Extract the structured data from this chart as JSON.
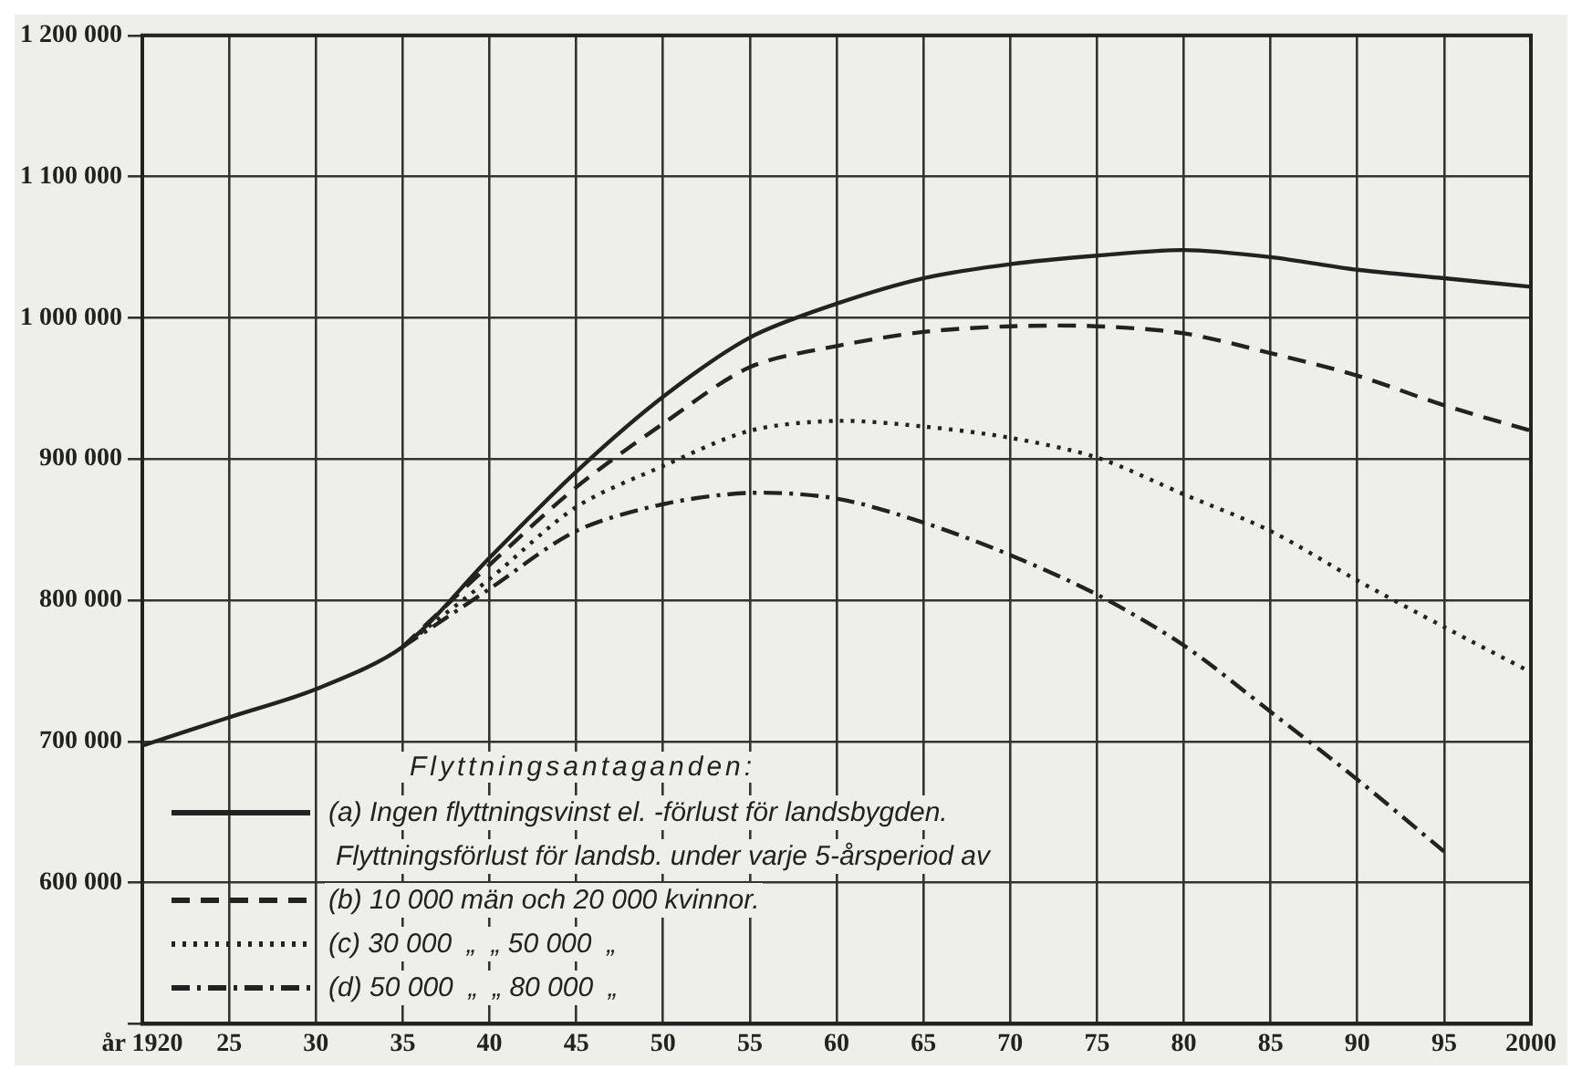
{
  "chart_data": {
    "type": "line",
    "legend_title": "Flyttningsantaganden:",
    "annotations": [
      "Flyttningsförlust för landsb. under varje 5-årsperiod av"
    ],
    "x": [
      1920,
      1925,
      1930,
      1935,
      1940,
      1945,
      1950,
      1955,
      1960,
      1965,
      1970,
      1975,
      1980,
      1985,
      1990,
      1995,
      2000
    ],
    "series": [
      {
        "name": "(a) Ingen flyttningsvinst el. -förlust för landsbygden.",
        "color": "#222222",
        "line_style": "solid",
        "values": [
          697000,
          717000,
          737000,
          767000,
          830000,
          891000,
          944000,
          986000,
          1010000,
          1028000,
          1038000,
          1044000,
          1048000,
          1043000,
          1034000,
          1028000,
          1022000
        ]
      },
      {
        "name": "(b) 10 000 män och 20 000 kvinnor.",
        "color": "#222222",
        "line_style": "dashed",
        "values": [
          null,
          null,
          null,
          767000,
          825000,
          880000,
          925000,
          965000,
          980000,
          990000,
          994000,
          994000,
          989000,
          975000,
          959000,
          938000,
          920000
        ]
      },
      {
        "name": "(c) 30 000  „  „ 50 000  „",
        "color": "#222222",
        "line_style": "dotted",
        "values": [
          null,
          null,
          null,
          767000,
          815000,
          866000,
          895000,
          920000,
          927000,
          923000,
          915000,
          901000,
          875000,
          849000,
          814000,
          781000,
          749000
        ]
      },
      {
        "name": "(d) 50 000  „  „ 80 000  „",
        "color": "#222222",
        "line_style": "dashdot",
        "values": [
          null,
          null,
          null,
          767000,
          808000,
          849000,
          868000,
          876000,
          872000,
          855000,
          832000,
          804000,
          768000,
          721000,
          673000,
          622000,
          null
        ]
      }
    ],
    "xlim": [
      1920,
      2000
    ],
    "xticks": [
      {
        "value": 1920,
        "label": "år 1920"
      },
      {
        "value": 1925,
        "label": "25"
      },
      {
        "value": 1930,
        "label": "30"
      },
      {
        "value": 1935,
        "label": "35"
      },
      {
        "value": 1940,
        "label": "40"
      },
      {
        "value": 1945,
        "label": "45"
      },
      {
        "value": 1950,
        "label": "50"
      },
      {
        "value": 1955,
        "label": "55"
      },
      {
        "value": 1960,
        "label": "60"
      },
      {
        "value": 1965,
        "label": "65"
      },
      {
        "value": 1970,
        "label": "70"
      },
      {
        "value": 1975,
        "label": "75"
      },
      {
        "value": 1980,
        "label": "80"
      },
      {
        "value": 1985,
        "label": "85"
      },
      {
        "value": 1990,
        "label": "90"
      },
      {
        "value": 1995,
        "label": "95"
      },
      {
        "value": 2000,
        "label": "2000"
      }
    ],
    "ylim": [
      500000,
      1200000
    ],
    "yticks": [
      {
        "value": 500000,
        "label": null
      },
      {
        "value": 600000,
        "label": "600 000"
      },
      {
        "value": 700000,
        "label": "700 000"
      },
      {
        "value": 800000,
        "label": "800 000"
      },
      {
        "value": 900000,
        "label": "900 000"
      },
      {
        "value": 1000000,
        "label": "1 000 000"
      },
      {
        "value": 1100000,
        "label": "1 100 000"
      },
      {
        "value": 1200000,
        "label": "1 200 000"
      }
    ],
    "grid": true,
    "legend": "bottom left"
  }
}
